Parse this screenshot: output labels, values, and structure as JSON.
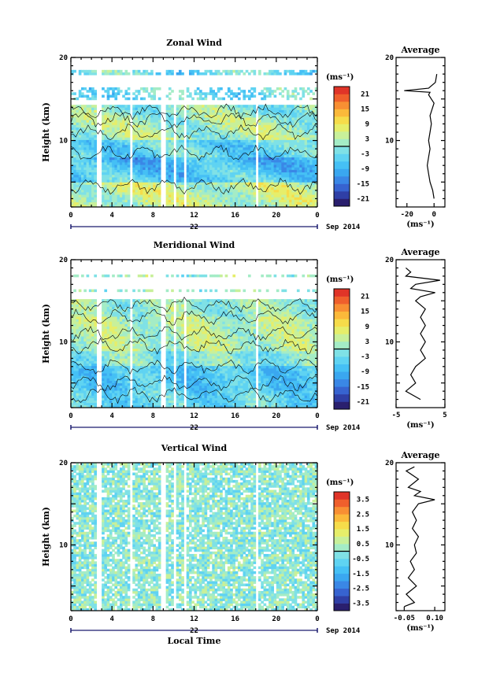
{
  "chart_data": [
    {
      "type": "heatmap",
      "title": "Zonal Wind",
      "ylabel": "Height (km)",
      "ylim": [
        2,
        20
      ],
      "yticks": [
        "20",
        "10"
      ],
      "xlim": [
        0,
        24
      ],
      "xticks": [
        "0",
        "4",
        "8",
        "12",
        "16",
        "20",
        "0"
      ],
      "date_day": "22",
      "date_month": "Sep 2014",
      "colorbar": {
        "unit": "(ms⁻¹)",
        "ticks": [
          "21",
          "15",
          "9",
          "3",
          "-3",
          "-9",
          "-15",
          "-21"
        ],
        "range": [
          -24,
          24
        ]
      },
      "data_gaps_hours": [
        [
          2.5,
          2.9
        ],
        [
          5.8,
          6.1
        ],
        [
          8.8,
          9.2
        ],
        [
          10.0,
          10.3
        ],
        [
          10.9,
          11.2
        ],
        [
          17.9,
          18.2
        ]
      ],
      "average": {
        "title": "Average",
        "xticks": [
          "-20",
          "0"
        ],
        "xlim": [
          -28,
          8
        ],
        "xlabel": "(ms⁻¹)",
        "ylim": [
          2,
          20
        ],
        "yticks": [
          "20",
          "10"
        ],
        "height": [
          3,
          4,
          5,
          6,
          7,
          8,
          9,
          10,
          11,
          12,
          13,
          14,
          14.5,
          15.5,
          15.8,
          16,
          16.3,
          17,
          18
        ],
        "value": [
          0,
          -1,
          -3,
          -4,
          -5,
          -4,
          -3,
          -4,
          -3,
          -2,
          -3,
          -1,
          0,
          -4,
          -3,
          -22,
          -4,
          1,
          2
        ]
      }
    },
    {
      "type": "heatmap",
      "title": "Meridional Wind",
      "ylabel": "Height (km)",
      "ylim": [
        2,
        20
      ],
      "yticks": [
        "20",
        "10"
      ],
      "xlim": [
        0,
        24
      ],
      "xticks": [
        "0",
        "4",
        "8",
        "12",
        "16",
        "20",
        "0"
      ],
      "date_day": "22",
      "date_month": "Sep 2014",
      "colorbar": {
        "unit": "(ms⁻¹)",
        "ticks": [
          "21",
          "15",
          "9",
          "3",
          "-3",
          "-9",
          "-15",
          "-21"
        ],
        "range": [
          -24,
          24
        ]
      },
      "data_gaps_hours": [
        [
          2.5,
          2.9
        ],
        [
          5.8,
          6.1
        ],
        [
          8.8,
          9.2
        ],
        [
          10.0,
          10.3
        ],
        [
          10.9,
          11.2
        ],
        [
          17.9,
          18.2
        ]
      ],
      "average": {
        "title": "Average",
        "xticks": [
          "-5",
          "5"
        ],
        "xlim": [
          -5,
          5
        ],
        "xlabel": "(ms⁻¹)",
        "ylim": [
          2,
          20
        ],
        "yticks": [
          "20",
          "10"
        ],
        "height": [
          3,
          4,
          5,
          6,
          7,
          8,
          9,
          10,
          11,
          12,
          13,
          14,
          15,
          15.5,
          16,
          16.5,
          17,
          17.5,
          18,
          18.5,
          19
        ],
        "value": [
          0,
          -3,
          -1,
          -2,
          -1,
          1,
          0,
          1,
          0,
          1,
          0,
          1,
          -1,
          0,
          3,
          -2,
          -1,
          4,
          -3,
          -2,
          -3
        ]
      }
    },
    {
      "type": "heatmap",
      "title": "Vertical Wind",
      "ylabel": "Height (km)",
      "xlabel": "Local Time",
      "ylim": [
        2,
        20
      ],
      "yticks": [
        "20",
        "10"
      ],
      "xlim": [
        0,
        24
      ],
      "xticks": [
        "0",
        "4",
        "8",
        "12",
        "16",
        "20",
        "0"
      ],
      "date_day": "22",
      "date_month": "Sep 2014",
      "colorbar": {
        "unit": "(ms⁻¹)",
        "ticks": [
          "3.5",
          "2.5",
          "1.5",
          "0.5",
          "-0.5",
          "-1.5",
          "-2.5",
          "-3.5"
        ],
        "range": [
          -4,
          4
        ]
      },
      "data_gaps_hours": [
        [
          2.5,
          2.9
        ],
        [
          5.8,
          6.1
        ],
        [
          8.8,
          9.2
        ],
        [
          10.0,
          10.3
        ],
        [
          10.9,
          11.2
        ],
        [
          17.9,
          18.2
        ]
      ],
      "average": {
        "title": "Average",
        "xticks": [
          "-0.05",
          "0.10"
        ],
        "xlim": [
          -0.09,
          0.15
        ],
        "xlabel": "(ms⁻¹)",
        "ylim": [
          2,
          20
        ],
        "yticks": [
          "20",
          "10"
        ],
        "height": [
          2.5,
          3,
          4,
          5,
          6,
          7,
          8,
          9,
          10,
          11,
          12,
          13,
          14,
          15,
          15.5,
          16,
          16.5,
          17,
          18,
          19,
          19.5
        ],
        "value": [
          -0.05,
          0.0,
          -0.04,
          0.01,
          -0.03,
          0.0,
          -0.02,
          0.01,
          0.0,
          0.02,
          -0.01,
          0.01,
          -0.01,
          0.02,
          0.1,
          0.0,
          0.03,
          -0.03,
          0.02,
          -0.04,
          0.0
        ]
      }
    }
  ]
}
